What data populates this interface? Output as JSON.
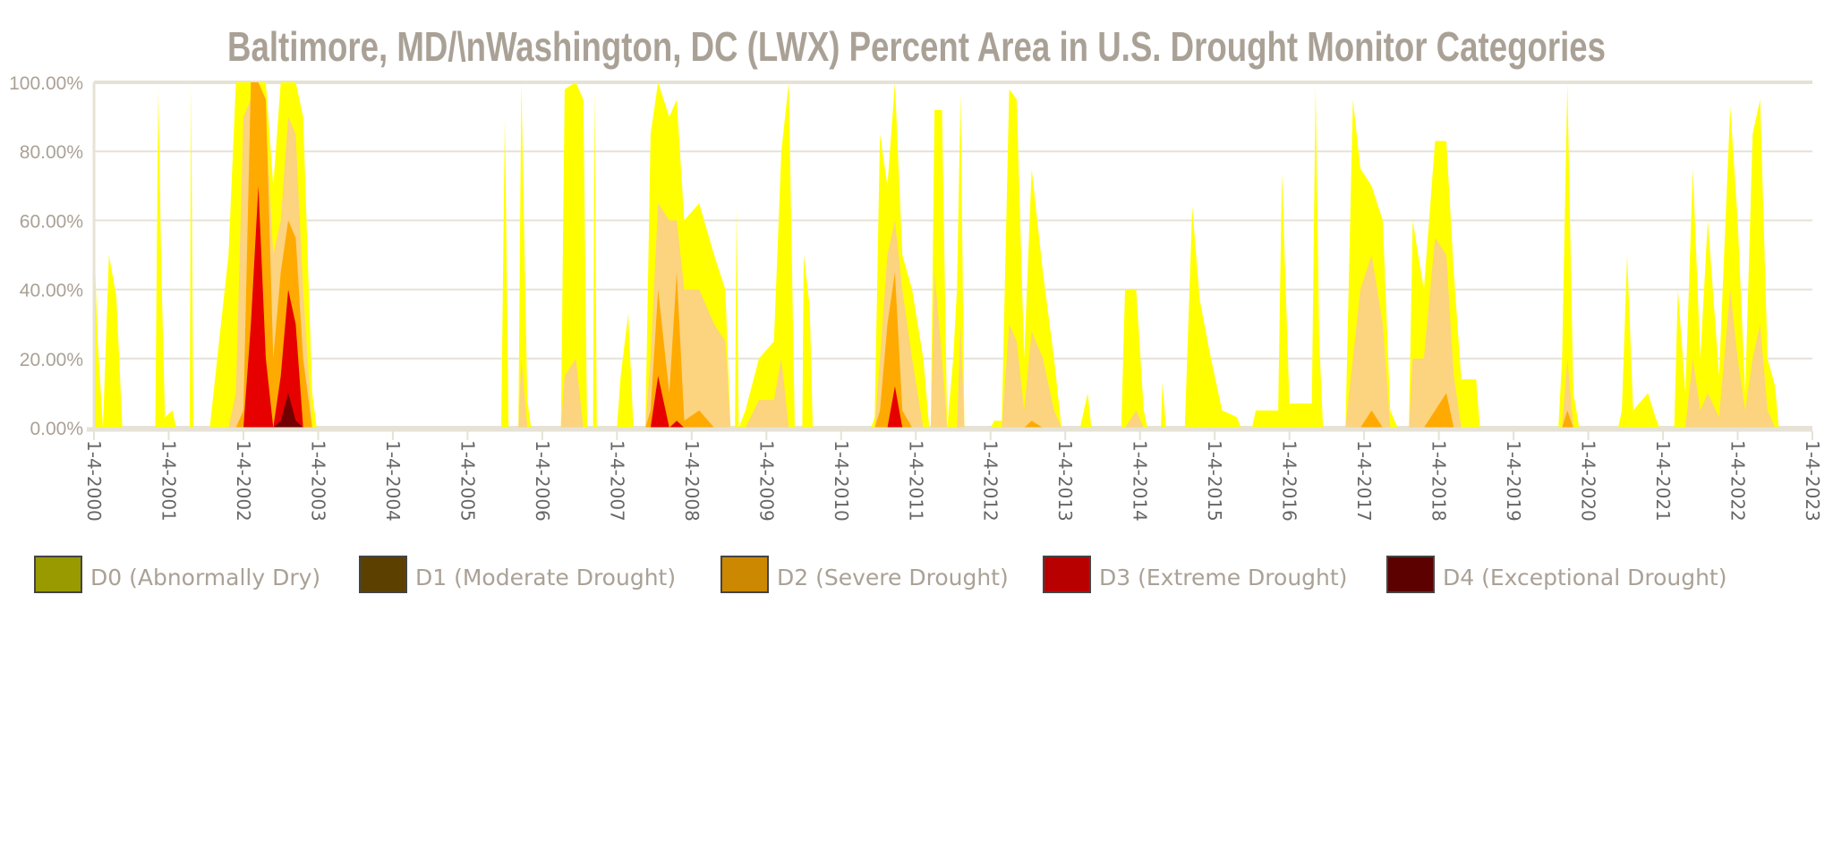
{
  "chart_data": {
    "type": "area",
    "stacked": true,
    "title": "Baltimore, MD/\\nWashington, DC (LWX) Percent Area in U.S. Drought Monitor Categories",
    "xlabel": "",
    "ylabel": "",
    "xlim": [
      2000,
      2023
    ],
    "ylim": [
      0,
      100
    ],
    "y_ticks": [
      "0.00%",
      "20.00%",
      "40.00%",
      "60.00%",
      "80.00%",
      "100.00%"
    ],
    "y_tick_values": [
      0,
      20,
      40,
      60,
      80,
      100
    ],
    "x_ticks": [
      "1-4-2000",
      "1-4-2001",
      "1-4-2002",
      "1-4-2003",
      "1-4-2004",
      "1-4-2005",
      "1-4-2006",
      "1-4-2007",
      "1-4-2008",
      "1-4-2009",
      "1-4-2010",
      "1-4-2011",
      "1-4-2012",
      "1-4-2013",
      "1-4-2014",
      "1-4-2015",
      "1-4-2016",
      "1-4-2017",
      "1-4-2018",
      "1-4-2019",
      "1-4-2020",
      "1-4-2021",
      "1-4-2022",
      "1-4-2023"
    ],
    "grid": true,
    "legend_position": "bottom-left",
    "series": [
      {
        "name": "D0 (Abnormally Dry)",
        "plot_color": "#ffff00",
        "legend_color": "#999900"
      },
      {
        "name": "D1 (Moderate Drought)",
        "plot_color": "#fcd37f",
        "legend_color": "#5c4000"
      },
      {
        "name": "D2 (Severe Drought)",
        "plot_color": "#ffaa00",
        "legend_color": "#cc8800"
      },
      {
        "name": "D3 (Extreme Drought)",
        "plot_color": "#e60000",
        "legend_color": "#b80000"
      },
      {
        "name": "D4 (Exceptional Drought)",
        "plot_color": "#730000",
        "legend_color": "#5c0000"
      }
    ],
    "points_note": "each row: [year, D0-D4 %, D1-D4 %, D2-D4 %, D3-D4 %, D4 %]",
    "points": [
      [
        2000.0,
        56,
        0,
        0,
        0,
        0
      ],
      [
        2000.05,
        25,
        0,
        0,
        0,
        0
      ],
      [
        2000.12,
        0,
        0,
        0,
        0,
        0
      ],
      [
        2000.2,
        50,
        0,
        0,
        0,
        0
      ],
      [
        2000.3,
        38,
        0,
        0,
        0,
        0
      ],
      [
        2000.38,
        0,
        0,
        0,
        0,
        0
      ],
      [
        2000.82,
        0,
        0,
        0,
        0,
        0
      ],
      [
        2000.86,
        98,
        0,
        0,
        0,
        0
      ],
      [
        2000.9,
        48,
        0,
        0,
        0,
        0
      ],
      [
        2000.95,
        3,
        0,
        0,
        0,
        0
      ],
      [
        2001.05,
        5,
        0,
        0,
        0,
        0
      ],
      [
        2001.1,
        0,
        0,
        0,
        0,
        0
      ],
      [
        2001.28,
        0,
        0,
        0,
        0,
        0
      ],
      [
        2001.3,
        100,
        0,
        0,
        0,
        0
      ],
      [
        2001.33,
        0,
        0,
        0,
        0,
        0
      ],
      [
        2001.55,
        0,
        0,
        0,
        0,
        0
      ],
      [
        2001.65,
        20,
        0,
        0,
        0,
        0
      ],
      [
        2001.8,
        50,
        0,
        0,
        0,
        0
      ],
      [
        2001.9,
        100,
        10,
        0,
        0,
        0
      ],
      [
        2002.0,
        100,
        90,
        5,
        0,
        0
      ],
      [
        2002.1,
        100,
        95,
        100,
        30,
        0
      ],
      [
        2002.2,
        100,
        95,
        100,
        70,
        0
      ],
      [
        2002.3,
        100,
        90,
        95,
        20,
        0
      ],
      [
        2002.4,
        70,
        50,
        20,
        0,
        0
      ],
      [
        2002.5,
        100,
        60,
        45,
        15,
        2
      ],
      [
        2002.6,
        100,
        90,
        60,
        40,
        10
      ],
      [
        2002.7,
        100,
        85,
        55,
        30,
        2
      ],
      [
        2002.8,
        90,
        40,
        20,
        0,
        0
      ],
      [
        2002.92,
        10,
        0,
        0,
        0,
        0
      ],
      [
        2002.98,
        0,
        0,
        0,
        0,
        0
      ],
      [
        2005.45,
        0,
        0,
        0,
        0,
        0
      ],
      [
        2005.5,
        90,
        0,
        0,
        0,
        0
      ],
      [
        2005.55,
        0,
        0,
        0,
        0,
        0
      ],
      [
        2005.68,
        0,
        0,
        0,
        0,
        0
      ],
      [
        2005.72,
        100,
        20,
        0,
        0,
        0
      ],
      [
        2005.8,
        8,
        0,
        0,
        0,
        0
      ],
      [
        2005.85,
        0,
        0,
        0,
        0,
        0
      ],
      [
        2006.25,
        0,
        0,
        0,
        0,
        0
      ],
      [
        2006.3,
        98,
        15,
        0,
        0,
        0
      ],
      [
        2006.45,
        100,
        20,
        0,
        0,
        0
      ],
      [
        2006.55,
        95,
        0,
        0,
        0,
        0
      ],
      [
        2006.6,
        0,
        0,
        0,
        0,
        0
      ],
      [
        2006.68,
        0,
        0,
        0,
        0,
        0
      ],
      [
        2006.7,
        98,
        0,
        0,
        0,
        0
      ],
      [
        2006.73,
        0,
        0,
        0,
        0,
        0
      ],
      [
        2007.0,
        0,
        0,
        0,
        0,
        0
      ],
      [
        2007.05,
        15,
        0,
        0,
        0,
        0
      ],
      [
        2007.15,
        33,
        0,
        0,
        0,
        0
      ],
      [
        2007.22,
        0,
        0,
        0,
        0,
        0
      ],
      [
        2007.38,
        0,
        0,
        0,
        0,
        0
      ],
      [
        2007.45,
        85,
        20,
        5,
        0,
        0
      ],
      [
        2007.55,
        100,
        65,
        40,
        15,
        0
      ],
      [
        2007.7,
        90,
        60,
        10,
        0,
        0
      ],
      [
        2007.8,
        95,
        60,
        45,
        2,
        0
      ],
      [
        2007.9,
        60,
        40,
        2,
        0,
        0
      ],
      [
        2008.1,
        65,
        40,
        5,
        0,
        0
      ],
      [
        2008.3,
        50,
        30,
        0,
        0,
        0
      ],
      [
        2008.45,
        40,
        25,
        0,
        0,
        0
      ],
      [
        2008.52,
        0,
        0,
        0,
        0,
        0
      ],
      [
        2008.58,
        0,
        0,
        0,
        0,
        0
      ],
      [
        2008.6,
        64,
        0,
        0,
        0,
        0
      ],
      [
        2008.63,
        0,
        0,
        0,
        0,
        0
      ],
      [
        2008.72,
        5,
        0,
        0,
        0,
        0
      ],
      [
        2008.9,
        20,
        8,
        0,
        0,
        0
      ],
      [
        2009.1,
        25,
        8,
        0,
        0,
        0
      ],
      [
        2009.2,
        80,
        20,
        0,
        0,
        0
      ],
      [
        2009.3,
        100,
        0,
        0,
        0,
        0
      ],
      [
        2009.38,
        0,
        0,
        0,
        0,
        0
      ],
      [
        2009.48,
        0,
        0,
        0,
        0,
        0
      ],
      [
        2009.5,
        50,
        0,
        0,
        0,
        0
      ],
      [
        2009.58,
        35,
        0,
        0,
        0,
        0
      ],
      [
        2009.62,
        0,
        0,
        0,
        0,
        0
      ],
      [
        2010.4,
        0,
        0,
        0,
        0,
        0
      ],
      [
        2010.45,
        3,
        0,
        0,
        0,
        0
      ],
      [
        2010.52,
        85,
        20,
        5,
        0,
        0
      ],
      [
        2010.62,
        70,
        50,
        30,
        0,
        0
      ],
      [
        2010.72,
        100,
        60,
        45,
        12,
        0
      ],
      [
        2010.82,
        50,
        40,
        5,
        0,
        0
      ],
      [
        2010.95,
        40,
        20,
        0,
        0,
        0
      ],
      [
        2011.1,
        20,
        0,
        0,
        0,
        0
      ],
      [
        2011.18,
        0,
        0,
        0,
        0,
        0
      ],
      [
        2011.2,
        0,
        0,
        0,
        0,
        0
      ],
      [
        2011.25,
        92,
        45,
        0,
        0,
        0
      ],
      [
        2011.35,
        92,
        20,
        0,
        0,
        0
      ],
      [
        2011.42,
        0,
        0,
        0,
        0,
        0
      ],
      [
        2011.5,
        20,
        0,
        0,
        0,
        0
      ],
      [
        2011.55,
        40,
        0,
        0,
        0,
        0
      ],
      [
        2011.6,
        97,
        30,
        0,
        0,
        0
      ],
      [
        2011.65,
        0,
        0,
        0,
        0,
        0
      ],
      [
        2012.0,
        0,
        0,
        0,
        0,
        0
      ],
      [
        2012.05,
        2,
        0,
        0,
        0,
        0
      ],
      [
        2012.15,
        2,
        0,
        0,
        0,
        0
      ],
      [
        2012.25,
        98,
        30,
        0,
        0,
        0
      ],
      [
        2012.35,
        95,
        25,
        0,
        0,
        0
      ],
      [
        2012.45,
        20,
        5,
        0,
        0,
        0
      ],
      [
        2012.55,
        75,
        28,
        2,
        0,
        0
      ],
      [
        2012.7,
        45,
        20,
        0,
        0,
        0
      ],
      [
        2012.85,
        20,
        5,
        0,
        0,
        0
      ],
      [
        2012.95,
        0,
        0,
        0,
        0,
        0
      ],
      [
        2013.2,
        0,
        0,
        0,
        0,
        0
      ],
      [
        2013.3,
        10,
        0,
        0,
        0,
        0
      ],
      [
        2013.35,
        0,
        0,
        0,
        0,
        0
      ],
      [
        2013.75,
        0,
        0,
        0,
        0,
        0
      ],
      [
        2013.8,
        40,
        0,
        0,
        0,
        0
      ],
      [
        2013.95,
        40,
        5,
        0,
        0,
        0
      ],
      [
        2014.05,
        5,
        0,
        0,
        0,
        0
      ],
      [
        2014.1,
        0,
        0,
        0,
        0,
        0
      ],
      [
        2014.28,
        0,
        0,
        0,
        0,
        0
      ],
      [
        2014.3,
        13,
        0,
        0,
        0,
        0
      ],
      [
        2014.35,
        0,
        0,
        0,
        0,
        0
      ],
      [
        2014.6,
        0,
        0,
        0,
        0,
        0
      ],
      [
        2014.7,
        64,
        0,
        0,
        0,
        0
      ],
      [
        2014.8,
        37,
        0,
        0,
        0,
        0
      ],
      [
        2014.95,
        20,
        0,
        0,
        0,
        0
      ],
      [
        2015.1,
        5,
        0,
        0,
        0,
        0
      ],
      [
        2015.3,
        3,
        0,
        0,
        0,
        0
      ],
      [
        2015.35,
        0,
        0,
        0,
        0,
        0
      ],
      [
        2015.5,
        0,
        0,
        0,
        0,
        0
      ],
      [
        2015.55,
        5,
        0,
        0,
        0,
        0
      ],
      [
        2015.85,
        5,
        0,
        0,
        0,
        0
      ],
      [
        2015.9,
        74,
        0,
        0,
        0,
        0
      ],
      [
        2016.0,
        7,
        0,
        0,
        0,
        0
      ],
      [
        2016.3,
        7,
        0,
        0,
        0,
        0
      ],
      [
        2016.35,
        99,
        0,
        0,
        0,
        0
      ],
      [
        2016.4,
        25,
        0,
        0,
        0,
        0
      ],
      [
        2016.45,
        0,
        0,
        0,
        0,
        0
      ],
      [
        2016.75,
        0,
        0,
        0,
        0,
        0
      ],
      [
        2016.85,
        95,
        20,
        0,
        0,
        0
      ],
      [
        2016.95,
        75,
        40,
        0,
        0,
        0
      ],
      [
        2017.1,
        70,
        50,
        5,
        0,
        0
      ],
      [
        2017.25,
        60,
        30,
        0,
        0,
        0
      ],
      [
        2017.35,
        5,
        0,
        0,
        0,
        0
      ],
      [
        2017.45,
        0,
        0,
        0,
        0,
        0
      ],
      [
        2017.6,
        0,
        0,
        0,
        0,
        0
      ],
      [
        2017.65,
        60,
        20,
        0,
        0,
        0
      ],
      [
        2017.8,
        40,
        20,
        0,
        0,
        0
      ],
      [
        2017.95,
        83,
        55,
        5,
        0,
        0
      ],
      [
        2018.1,
        83,
        50,
        10,
        0,
        0
      ],
      [
        2018.2,
        45,
        15,
        0,
        0,
        0
      ],
      [
        2018.3,
        14,
        0,
        0,
        0,
        0
      ],
      [
        2018.5,
        14,
        0,
        0,
        0,
        0
      ],
      [
        2018.55,
        0,
        0,
        0,
        0,
        0
      ],
      [
        2019.6,
        0,
        0,
        0,
        0,
        0
      ],
      [
        2019.65,
        20,
        0,
        0,
        0,
        0
      ],
      [
        2019.72,
        100,
        20,
        5,
        0,
        0
      ],
      [
        2019.8,
        10,
        0,
        0,
        0,
        0
      ],
      [
        2019.88,
        0,
        0,
        0,
        0,
        0
      ],
      [
        2020.4,
        0,
        0,
        0,
        0,
        0
      ],
      [
        2020.45,
        5,
        0,
        0,
        0,
        0
      ],
      [
        2020.52,
        50,
        0,
        0,
        0,
        0
      ],
      [
        2020.6,
        5,
        0,
        0,
        0,
        0
      ],
      [
        2020.8,
        10,
        0,
        0,
        0,
        0
      ],
      [
        2020.9,
        3,
        0,
        0,
        0,
        0
      ],
      [
        2020.95,
        0,
        0,
        0,
        0,
        0
      ],
      [
        2021.15,
        0,
        0,
        0,
        0,
        0
      ],
      [
        2021.2,
        40,
        0,
        0,
        0,
        0
      ],
      [
        2021.3,
        10,
        0,
        0,
        0,
        0
      ],
      [
        2021.4,
        75,
        20,
        0,
        0,
        0
      ],
      [
        2021.5,
        20,
        5,
        0,
        0,
        0
      ],
      [
        2021.6,
        60,
        10,
        0,
        0,
        0
      ],
      [
        2021.75,
        15,
        3,
        0,
        0,
        0
      ],
      [
        2021.9,
        93,
        40,
        0,
        0,
        0
      ],
      [
        2022.0,
        60,
        20,
        0,
        0,
        0
      ],
      [
        2022.1,
        10,
        5,
        0,
        0,
        0
      ],
      [
        2022.2,
        85,
        20,
        0,
        0,
        0
      ],
      [
        2022.3,
        95,
        30,
        0,
        0,
        0
      ],
      [
        2022.4,
        20,
        5,
        0,
        0,
        0
      ],
      [
        2022.5,
        12,
        0,
        0,
        0,
        0
      ],
      [
        2022.55,
        0,
        0,
        0,
        0,
        0
      ]
    ]
  }
}
